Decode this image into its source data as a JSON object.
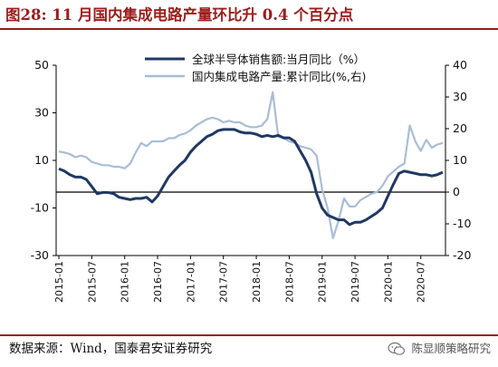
{
  "header": {
    "title": "图28: 11 月国内集成电路产量环比升 0.4 个百分点"
  },
  "footer": {
    "source": "数据来源：Wind，国泰君安证券研究",
    "watermark": "陈显顺策略研究"
  },
  "chart_data": {
    "type": "line",
    "left_axis": {
      "ylim": [
        -30,
        50
      ],
      "ticks": [
        -30,
        -10,
        10,
        30,
        50
      ]
    },
    "right_axis": {
      "ylim": [
        -20,
        40
      ],
      "ticks": [
        -20,
        -10,
        0,
        10,
        20,
        30,
        40
      ]
    },
    "x_tick_labels": [
      "2015-01",
      "2015-07",
      "2016-01",
      "2016-07",
      "2017-01",
      "2017-07",
      "2018-01",
      "2018-07",
      "2019-01",
      "2019-07",
      "2020-01",
      "2020-07"
    ],
    "x": [
      "2015-01",
      "2015-02",
      "2015-03",
      "2015-04",
      "2015-05",
      "2015-06",
      "2015-07",
      "2015-08",
      "2015-09",
      "2015-10",
      "2015-11",
      "2015-12",
      "2016-01",
      "2016-02",
      "2016-03",
      "2016-04",
      "2016-05",
      "2016-06",
      "2016-07",
      "2016-08",
      "2016-09",
      "2016-10",
      "2016-11",
      "2016-12",
      "2017-01",
      "2017-02",
      "2017-03",
      "2017-04",
      "2017-05",
      "2017-06",
      "2017-07",
      "2017-08",
      "2017-09",
      "2017-10",
      "2017-11",
      "2017-12",
      "2018-01",
      "2018-02",
      "2018-03",
      "2018-04",
      "2018-05",
      "2018-06",
      "2018-07",
      "2018-08",
      "2018-09",
      "2018-10",
      "2018-11",
      "2018-12",
      "2019-01",
      "2019-02",
      "2019-03",
      "2019-04",
      "2019-05",
      "2019-06",
      "2019-07",
      "2019-08",
      "2019-09",
      "2019-10",
      "2019-11",
      "2019-12",
      "2020-01",
      "2020-02",
      "2020-03",
      "2020-04",
      "2020-05",
      "2020-06",
      "2020-07",
      "2020-08",
      "2020-09",
      "2020-10",
      "2020-11"
    ],
    "series": [
      {
        "name": "全球半导体销售额:当月同比（%）",
        "axis": "left",
        "color": "#1f3864",
        "values": [
          6.5,
          5.5,
          4,
          3,
          3,
          2,
          -1,
          -4,
          -3.5,
          -3.5,
          -4,
          -5.5,
          -6,
          -6.5,
          -6,
          -6,
          -5.5,
          -7.5,
          -5,
          -1,
          3,
          5.5,
          8,
          10,
          13.5,
          16,
          18,
          20,
          21,
          22.5,
          23,
          23,
          23,
          22,
          21.5,
          21.5,
          21,
          20,
          20.5,
          20,
          20.5,
          19.5,
          19.5,
          18,
          14,
          10,
          5,
          -4,
          -10,
          -13,
          -14,
          -15,
          -15,
          -17,
          -16,
          -16,
          -15,
          -13.5,
          -12,
          -10,
          -5,
          0,
          4.5,
          5.5,
          5,
          4.5,
          4,
          4,
          3.5,
          4,
          5
        ]
      },
      {
        "name": "国内集成电路产量:累计同比(%,右)",
        "axis": "right",
        "color": "#a9bcd9",
        "values": [
          12.8,
          12.5,
          12,
          11,
          11.5,
          11,
          9.5,
          9,
          8.5,
          8.5,
          8,
          8,
          7.5,
          9,
          12.5,
          15.5,
          14.5,
          16,
          16,
          16,
          17,
          17,
          18,
          18.5,
          19.5,
          21,
          22,
          23,
          23.5,
          23,
          22,
          22.5,
          22,
          22,
          21,
          20.5,
          20.5,
          21,
          23,
          31.5,
          17.5,
          17,
          16,
          15.5,
          14.5,
          14,
          13.5,
          11.5,
          1,
          -5,
          -14.5,
          -9,
          -2,
          -4.5,
          -4.5,
          -2.5,
          -1.5,
          -0.5,
          0,
          2,
          5,
          6.5,
          8,
          9,
          21,
          16,
          13,
          16.5,
          14,
          15,
          15.5
        ]
      }
    ]
  }
}
